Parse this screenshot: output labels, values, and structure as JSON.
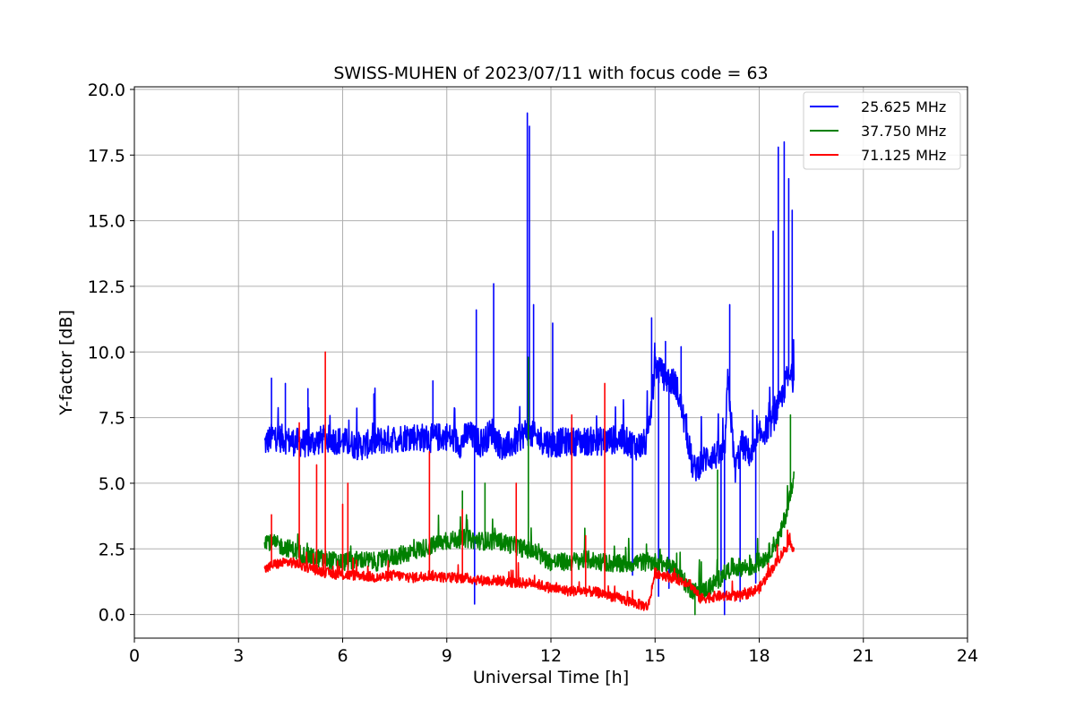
{
  "chart_data": {
    "type": "line",
    "title": "SWISS-MUHEN of 2023/07/11 with focus code = 63",
    "xlabel": "Universal Time [h]",
    "ylabel": "Y-factor [dB]",
    "xlim": [
      0,
      24
    ],
    "ylim": [
      -0.9,
      20.1
    ],
    "xticks": [
      0,
      3,
      6,
      9,
      12,
      15,
      18,
      21,
      24
    ],
    "xtick_labels": [
      "0",
      "3",
      "6",
      "9",
      "12",
      "15",
      "18",
      "21",
      "24"
    ],
    "yticks": [
      0.0,
      2.5,
      5.0,
      7.5,
      10.0,
      12.5,
      15.0,
      17.5,
      20.0
    ],
    "ytick_labels": [
      "0.0",
      "2.5",
      "5.0",
      "7.5",
      "10.0",
      "12.5",
      "15.0",
      "17.5",
      "20.0"
    ],
    "grid": true,
    "legend_position": "top-right",
    "series": [
      {
        "name": "25.625 MHz",
        "color": "#0000ff",
        "x": [
          3.75,
          4.0,
          4.5,
          5.0,
          5.5,
          6.0,
          6.5,
          7.0,
          7.5,
          8.0,
          8.5,
          9.0,
          9.4,
          9.6,
          10.0,
          10.3,
          10.6,
          11.0,
          11.3,
          11.5,
          12.0,
          12.5,
          13.0,
          13.5,
          14.0,
          14.5,
          14.8,
          15.0,
          15.3,
          15.6,
          15.9,
          16.1,
          16.5,
          17.0,
          17.1,
          17.3,
          17.5,
          17.8,
          18.0,
          18.3,
          18.6,
          18.8,
          19.0
        ],
        "y": [
          6.5,
          6.8,
          6.6,
          6.5,
          6.7,
          6.6,
          6.4,
          6.6,
          6.7,
          6.8,
          6.7,
          6.8,
          6.5,
          6.9,
          6.5,
          7.0,
          6.3,
          6.6,
          7.0,
          6.8,
          6.5,
          6.6,
          6.6,
          6.6,
          6.7,
          6.4,
          6.6,
          9.5,
          9.0,
          8.8,
          7.0,
          5.5,
          6.0,
          6.1,
          9.0,
          5.5,
          6.5,
          6.0,
          6.8,
          7.2,
          8.0,
          9.0,
          9.0
        ],
        "peaks": [
          {
            "x": 3.95,
            "y": 9.0
          },
          {
            "x": 4.35,
            "y": 8.8
          },
          {
            "x": 5.0,
            "y": 8.6
          },
          {
            "x": 6.9,
            "y": 8.4
          },
          {
            "x": 8.6,
            "y": 8.9
          },
          {
            "x": 9.85,
            "y": 11.6
          },
          {
            "x": 10.35,
            "y": 12.6
          },
          {
            "x": 11.32,
            "y": 19.1
          },
          {
            "x": 11.38,
            "y": 18.6
          },
          {
            "x": 11.5,
            "y": 11.8
          },
          {
            "x": 12.05,
            "y": 11.1
          },
          {
            "x": 14.9,
            "y": 11.3
          },
          {
            "x": 15.3,
            "y": 10.4
          },
          {
            "x": 15.75,
            "y": 10.2
          },
          {
            "x": 17.15,
            "y": 11.8
          },
          {
            "x": 18.4,
            "y": 14.6
          },
          {
            "x": 18.55,
            "y": 17.8
          },
          {
            "x": 18.72,
            "y": 18.0
          },
          {
            "x": 18.85,
            "y": 16.6
          },
          {
            "x": 18.95,
            "y": 15.4
          }
        ],
        "dips": [
          {
            "x": 9.8,
            "y": 0.4
          },
          {
            "x": 14.35,
            "y": 1.5
          },
          {
            "x": 15.1,
            "y": 0.7
          },
          {
            "x": 15.4,
            "y": 1.0
          },
          {
            "x": 16.9,
            "y": 1.5
          },
          {
            "x": 17.0,
            "y": 0.0
          },
          {
            "x": 17.45,
            "y": 0.5
          },
          {
            "x": 17.9,
            "y": 1.2
          }
        ]
      },
      {
        "name": "37.750 MHz",
        "color": "#008000",
        "x": [
          3.75,
          4.0,
          4.5,
          5.0,
          5.5,
          6.0,
          6.5,
          7.0,
          7.5,
          8.0,
          8.5,
          9.0,
          9.5,
          10.0,
          10.5,
          11.0,
          11.5,
          12.0,
          12.5,
          13.0,
          13.5,
          14.0,
          14.5,
          15.0,
          15.5,
          16.0,
          16.3,
          16.8,
          17.2,
          17.8,
          18.2,
          18.6,
          18.9,
          19.0
        ],
        "y": [
          2.9,
          2.7,
          2.5,
          2.2,
          2.1,
          2.0,
          2.1,
          2.0,
          2.2,
          2.4,
          2.6,
          2.8,
          2.9,
          2.8,
          2.8,
          2.6,
          2.4,
          2.0,
          2.0,
          2.1,
          2.0,
          1.9,
          2.0,
          2.0,
          1.8,
          1.0,
          0.8,
          1.3,
          1.8,
          1.8,
          2.2,
          3.0,
          4.5,
          5.5
        ],
        "peaks": [
          {
            "x": 9.45,
            "y": 4.7
          },
          {
            "x": 10.1,
            "y": 5.0
          },
          {
            "x": 11.35,
            "y": 9.8
          },
          {
            "x": 16.8,
            "y": 5.5
          },
          {
            "x": 18.9,
            "y": 7.6
          }
        ],
        "dips": [
          {
            "x": 16.15,
            "y": 0.0
          }
        ]
      },
      {
        "name": "71.125 MHz",
        "color": "#ff0000",
        "x": [
          3.75,
          4.0,
          4.5,
          5.0,
          5.5,
          6.0,
          6.5,
          7.0,
          7.5,
          8.0,
          8.5,
          9.0,
          9.5,
          10.0,
          10.5,
          11.0,
          11.5,
          12.0,
          12.5,
          13.0,
          13.5,
          14.0,
          14.5,
          14.8,
          15.0,
          15.5,
          16.0,
          16.3,
          16.8,
          17.5,
          18.0,
          18.4,
          18.8,
          19.0
        ],
        "y": [
          1.7,
          1.9,
          2.0,
          1.8,
          1.6,
          1.5,
          1.5,
          1.4,
          1.5,
          1.4,
          1.5,
          1.4,
          1.4,
          1.3,
          1.3,
          1.2,
          1.2,
          1.0,
          0.9,
          0.9,
          0.8,
          0.6,
          0.4,
          0.3,
          1.6,
          1.4,
          1.2,
          0.6,
          0.7,
          0.7,
          1.0,
          1.8,
          2.6,
          2.6
        ],
        "peaks": [
          {
            "x": 3.95,
            "y": 3.8
          },
          {
            "x": 4.75,
            "y": 7.3
          },
          {
            "x": 5.25,
            "y": 5.7
          },
          {
            "x": 5.5,
            "y": 10.0
          },
          {
            "x": 6.0,
            "y": 4.2
          },
          {
            "x": 6.15,
            "y": 5.0
          },
          {
            "x": 8.5,
            "y": 6.2
          },
          {
            "x": 9.45,
            "y": 4.0
          },
          {
            "x": 11.0,
            "y": 5.0
          },
          {
            "x": 12.6,
            "y": 7.6
          },
          {
            "x": 13.0,
            "y": 3.0
          },
          {
            "x": 13.55,
            "y": 8.8
          }
        ],
        "dips": []
      }
    ]
  }
}
